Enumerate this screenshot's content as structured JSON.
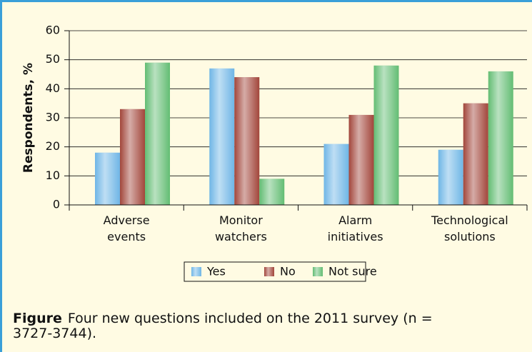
{
  "chart_data": {
    "type": "bar",
    "y_label": "Respondents, %",
    "categories": [
      "Adverse events",
      "Monitor watchers",
      "Alarm initiatives",
      "Technological solutions"
    ],
    "series": [
      {
        "name": "Yes",
        "color": "#6fb6e6",
        "values": [
          18,
          47,
          21,
          19
        ]
      },
      {
        "name": "No",
        "color": "#a2463b",
        "values": [
          33,
          44,
          31,
          35
        ]
      },
      {
        "name": "Not sure",
        "color": "#63bd73",
        "values": [
          49,
          9,
          48,
          46
        ]
      }
    ],
    "ylim": [
      0,
      60
    ],
    "yticks": [
      0,
      10,
      20,
      30,
      40,
      50,
      60
    ],
    "grid": true,
    "legend": "bottom",
    "caption": {
      "label": "Figure",
      "text": "Four new questions included on the 2011 survey (n = 3727-3744)."
    }
  }
}
